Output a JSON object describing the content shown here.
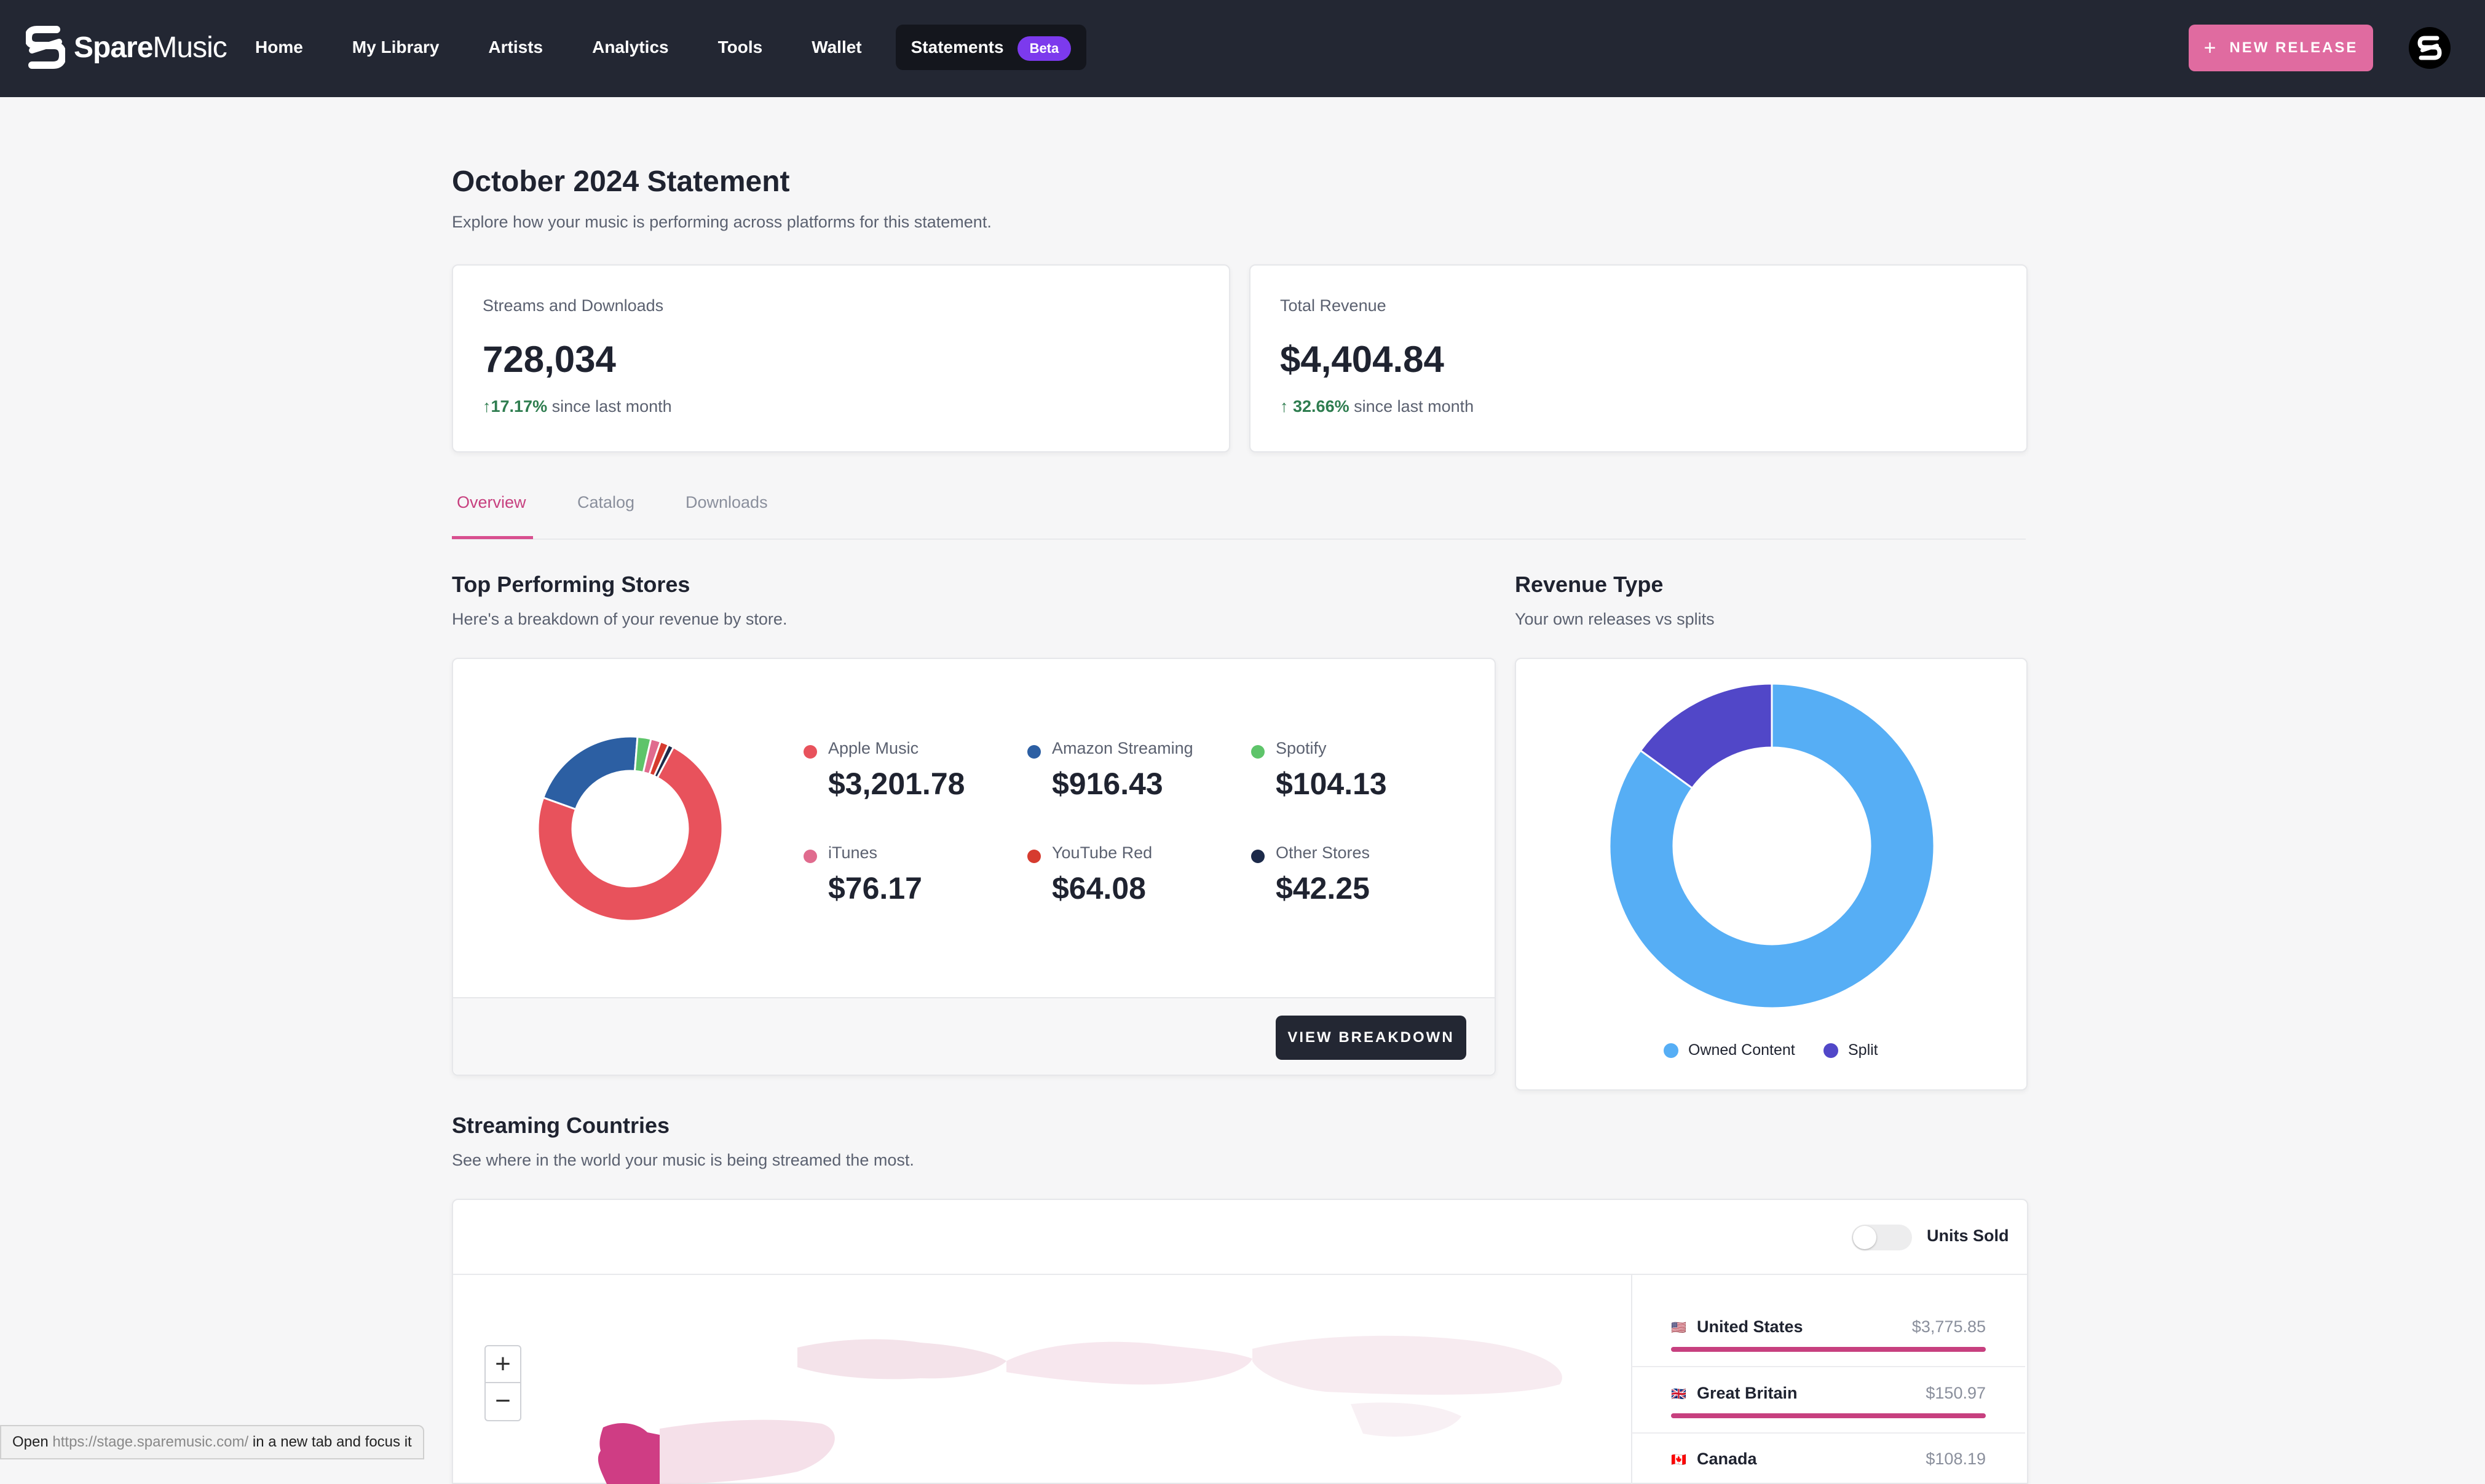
{
  "brand": {
    "bold": "Spare",
    "light": "Music"
  },
  "nav": {
    "items": [
      "Home",
      "My Library",
      "Artists",
      "Analytics",
      "Tools",
      "Wallet"
    ],
    "active": {
      "label": "Statements",
      "badge": "Beta"
    }
  },
  "header": {
    "new_release_label": "NEW RELEASE"
  },
  "page": {
    "title": "October 2024 Statement",
    "subtitle": "Explore how your music is performing across platforms for this statement."
  },
  "kpis": {
    "streams": {
      "label": "Streams and Downloads",
      "value": "728,034",
      "delta": "17.17%",
      "delta_suffix": "since last month"
    },
    "revenue": {
      "label": "Total Revenue",
      "value": "$4,404.84",
      "delta": "32.66%",
      "delta_suffix": "since last month"
    }
  },
  "tabs": [
    "Overview",
    "Catalog",
    "Downloads"
  ],
  "stores_section": {
    "title": "Top Performing Stores",
    "subtitle": "Here's a breakdown of your revenue by store.",
    "button_label": "VIEW BREAKDOWN"
  },
  "revenue_type_section": {
    "title": "Revenue Type",
    "subtitle": "Your own releases vs splits"
  },
  "chart_data": [
    {
      "type": "pie",
      "subtype": "donut",
      "categories": [
        "Apple Music",
        "Amazon Streaming",
        "Spotify",
        "iTunes",
        "YouTube Red",
        "Other Stores"
      ],
      "values": [
        3201.78,
        916.43,
        104.13,
        76.17,
        64.08,
        42.25
      ],
      "display_values": [
        "$3,201.78",
        "$916.43",
        "$104.13",
        "$76.17",
        "$64.08",
        "$42.25"
      ],
      "colors": [
        "#e8525c",
        "#2c5fa3",
        "#5ec46a",
        "#e06b8e",
        "#d63b2f",
        "#1c2a4a"
      ],
      "legend_placement": "right"
    },
    {
      "type": "pie",
      "subtype": "donut",
      "categories": [
        "Owned Content",
        "Split"
      ],
      "values": [
        85,
        15
      ],
      "colors": [
        "#56aef5",
        "#5147c8"
      ],
      "legend_placement": "bottom"
    }
  ],
  "countries_section": {
    "title": "Streaming Countries",
    "subtitle": "See where in the world your music is being streamed the most.",
    "toggle_label": "Units Sold",
    "countries": [
      {
        "flag": "🇺🇸",
        "name": "United States",
        "value": "$3,775.85",
        "share": 1.0
      },
      {
        "flag": "🇬🇧",
        "name": "Great Britain",
        "value": "$150.97",
        "share": 1.0
      },
      {
        "flag": "🇨🇦",
        "name": "Canada",
        "value": "$108.19",
        "share": 1.0
      }
    ]
  },
  "status_bar": {
    "prefix": "Open",
    "url": "https://stage.sparemusic.com/",
    "suffix": "in a new tab and focus it"
  }
}
